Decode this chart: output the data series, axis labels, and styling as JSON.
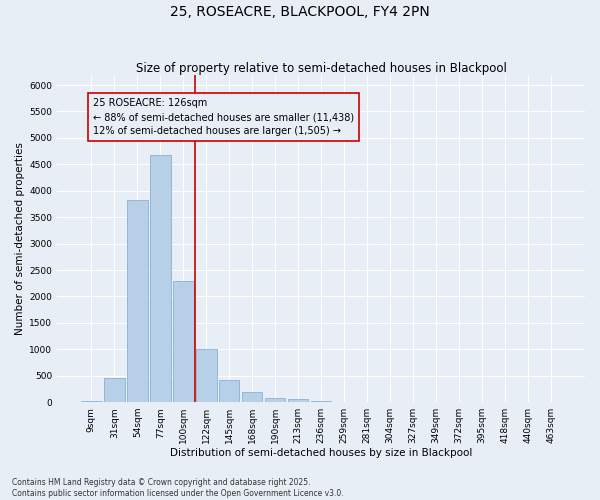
{
  "title": "25, ROSEACRE, BLACKPOOL, FY4 2PN",
  "subtitle": "Size of property relative to semi-detached houses in Blackpool",
  "xlabel": "Distribution of semi-detached houses by size in Blackpool",
  "ylabel": "Number of semi-detached properties",
  "footnote": "Contains HM Land Registry data © Crown copyright and database right 2025.\nContains public sector information licensed under the Open Government Licence v3.0.",
  "bar_labels": [
    "9sqm",
    "31sqm",
    "54sqm",
    "77sqm",
    "100sqm",
    "122sqm",
    "145sqm",
    "168sqm",
    "190sqm",
    "213sqm",
    "236sqm",
    "259sqm",
    "281sqm",
    "304sqm",
    "327sqm",
    "349sqm",
    "372sqm",
    "395sqm",
    "418sqm",
    "440sqm",
    "463sqm"
  ],
  "bar_values": [
    30,
    460,
    3820,
    4680,
    2300,
    1010,
    415,
    195,
    75,
    60,
    30,
    0,
    0,
    0,
    0,
    0,
    0,
    0,
    0,
    0,
    0
  ],
  "bar_color": "#b8cfe8",
  "bar_edgecolor": "#7aaad0",
  "ylim": [
    0,
    6200
  ],
  "yticks": [
    0,
    500,
    1000,
    1500,
    2000,
    2500,
    3000,
    3500,
    4000,
    4500,
    5000,
    5500,
    6000
  ],
  "vline_x_index": 5,
  "vline_color": "#cc0000",
  "annotation_line1": "25 ROSEACRE: 126sqm",
  "annotation_line2": "← 88% of semi-detached houses are smaller (11,438)",
  "annotation_line3": "12% of semi-detached houses are larger (1,505) →",
  "annotation_box_color": "#cc0000",
  "background_color": "#e8eef5",
  "grid_color": "#ffffff",
  "title_fontsize": 10,
  "subtitle_fontsize": 8.5,
  "axis_label_fontsize": 7.5,
  "tick_fontsize": 6.5,
  "annotation_fontsize": 7,
  "footnote_fontsize": 5.5
}
